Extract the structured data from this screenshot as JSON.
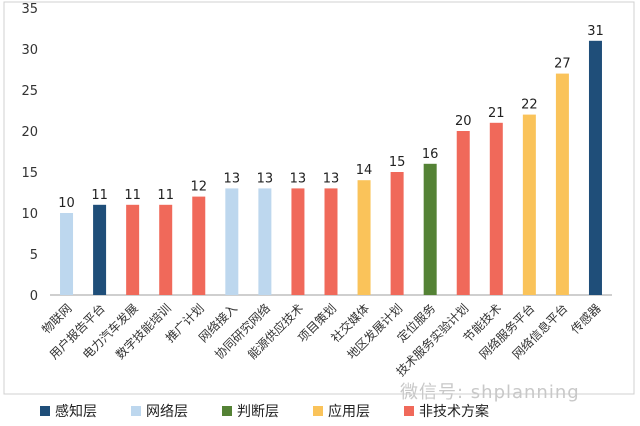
{
  "chart_data": {
    "type": "bar",
    "categories": [
      "物联网",
      "用户报告平台",
      "电力汽车发展",
      "数字技能培训",
      "推广计划",
      "网络接入",
      "协同研究网络",
      "能源供应技术",
      "项目策划",
      "社交媒体",
      "地区发展计划",
      "定位服务",
      "技术服务实验计划",
      "节能技术",
      "网络服务平台",
      "网络信息平台",
      "传感器"
    ],
    "values": [
      10,
      11,
      11,
      11,
      12,
      13,
      13,
      13,
      13,
      14,
      15,
      16,
      20,
      21,
      22,
      27,
      31
    ],
    "groups": [
      "网络层",
      "感知层",
      "非技术方案",
      "非技术方案",
      "非技术方案",
      "网络层",
      "网络层",
      "非技术方案",
      "非技术方案",
      "应用层",
      "非技术方案",
      "判断层",
      "非技术方案",
      "非技术方案",
      "应用层",
      "应用层",
      "感知层"
    ],
    "ylim": [
      0,
      35
    ],
    "yticks": [
      0,
      5,
      10,
      15,
      20,
      25,
      30,
      35
    ],
    "data_labels": true,
    "grid": false,
    "legend_position": "bottom",
    "legend": [
      {
        "name": "感知层",
        "color": "#1f4e79"
      },
      {
        "name": "网络层",
        "color": "#bdd7ee"
      },
      {
        "name": "判断层",
        "color": "#548235"
      },
      {
        "name": "应用层",
        "color": "#fac35a"
      },
      {
        "name": "非技术方案",
        "color": "#f0695a"
      }
    ]
  },
  "watermark": "微信号: shplanning"
}
